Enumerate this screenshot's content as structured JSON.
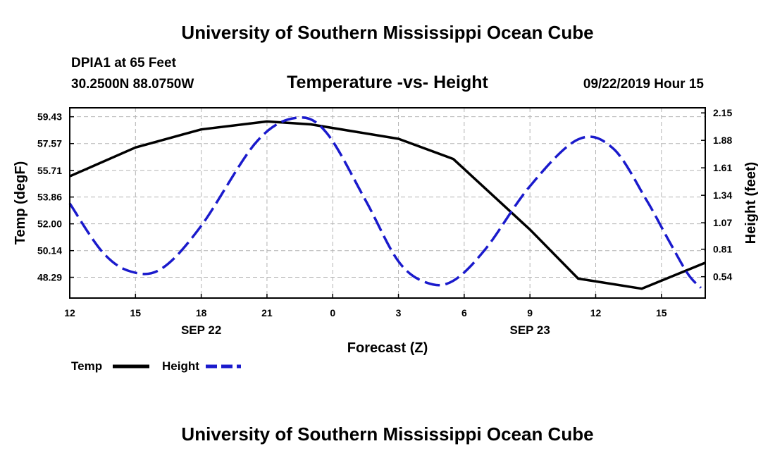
{
  "header": {
    "title": "University of Southern Mississippi Ocean Cube",
    "station": "DPIA1 at 65 Feet",
    "coords": "30.2500N 88.0750W",
    "chart_title": "Temperature -vs- Height",
    "valid_time": "09/22/2019 Hour 15"
  },
  "footer": {
    "title": "University of Southern Mississippi Ocean Cube"
  },
  "colors": {
    "temp": "#000000",
    "height": "#1a1acc",
    "grid": "#b4b4b4"
  },
  "chart_data": {
    "type": "line",
    "title": "Temperature -vs- Height",
    "xlabel": "Forecast (Z)",
    "ylabel": "Temp (degF)",
    "ylabel_right": "Height (feet)",
    "x_hours_range": [
      0,
      29
    ],
    "x_ticks": [
      {
        "hour": 0,
        "label": "12"
      },
      {
        "hour": 3,
        "label": "15"
      },
      {
        "hour": 6,
        "label": "18"
      },
      {
        "hour": 9,
        "label": "21"
      },
      {
        "hour": 12,
        "label": "0"
      },
      {
        "hour": 15,
        "label": "3"
      },
      {
        "hour": 18,
        "label": "6"
      },
      {
        "hour": 21,
        "label": "9"
      },
      {
        "hour": 24,
        "label": "12"
      },
      {
        "hour": 27,
        "label": "15"
      }
    ],
    "date_labels": [
      {
        "hour": 6,
        "label": "SEP 22"
      },
      {
        "hour": 21,
        "label": "SEP 23"
      }
    ],
    "y_left": {
      "range": [
        46.85,
        60.05
      ],
      "ticks": [
        "59.43",
        "57.57",
        "55.71",
        "53.86",
        "52.00",
        "50.14",
        "48.29"
      ],
      "values": [
        59.43,
        57.57,
        55.71,
        53.86,
        52.0,
        50.14,
        48.29
      ]
    },
    "y_right": {
      "range": [
        0.33,
        2.2
      ],
      "ticks": [
        "2.15",
        "1.88",
        "1.61",
        "1.34",
        "1.07",
        "0.81",
        "0.54"
      ],
      "values": [
        2.15,
        1.88,
        1.61,
        1.34,
        1.07,
        0.81,
        0.54
      ]
    },
    "series": [
      {
        "name": "Temp",
        "axis": "left",
        "style": "solid",
        "x": [
          0,
          3,
          6,
          9,
          11,
          15,
          17.5,
          21,
          23.2,
          26.1,
          29
        ],
        "values": [
          55.3,
          57.3,
          58.55,
          59.1,
          58.9,
          57.9,
          56.5,
          51.6,
          48.2,
          47.5,
          49.3
        ]
      },
      {
        "name": "Height",
        "axis": "right",
        "style": "dashed",
        "x": [
          0,
          1.5,
          2.8,
          4.2,
          6,
          8.5,
          10.3,
          11.7,
          13.5,
          15,
          16.3,
          17.5,
          19,
          21,
          23.2,
          24.8,
          26.3,
          27.3,
          28.2,
          28.8
        ],
        "values": [
          1.26,
          0.78,
          0.59,
          0.62,
          1.04,
          1.86,
          2.1,
          1.96,
          1.29,
          0.69,
          0.48,
          0.5,
          0.82,
          1.43,
          1.89,
          1.8,
          1.3,
          0.91,
          0.57,
          0.43
        ]
      }
    ],
    "legend": [
      {
        "name": "Temp",
        "style": "solid"
      },
      {
        "name": "Height",
        "style": "dashed"
      }
    ],
    "grid": true
  }
}
